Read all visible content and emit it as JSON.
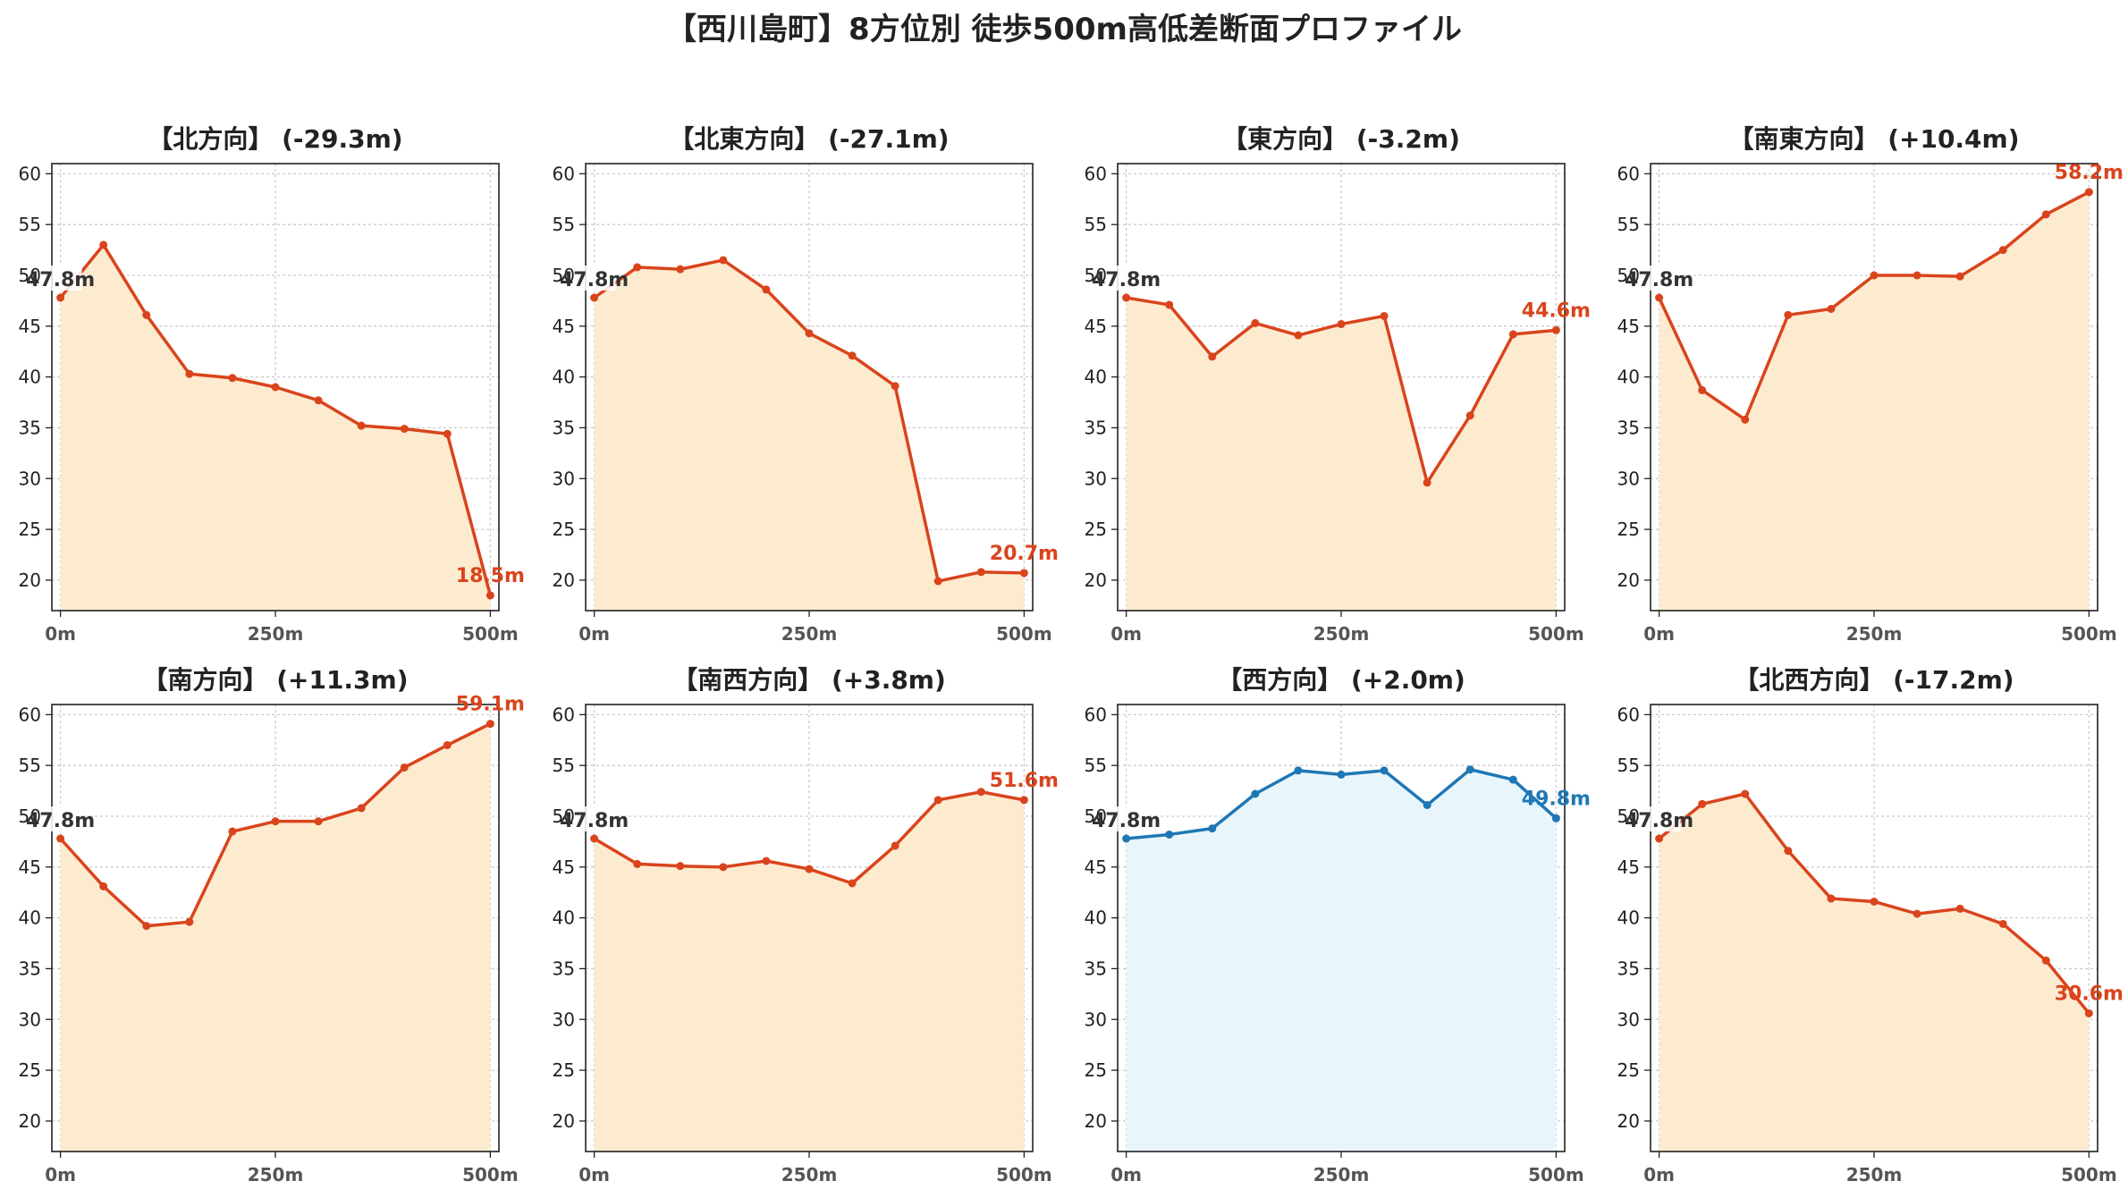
{
  "figure": {
    "title": "【西川島町】8方位別 徒歩500m高低差断面プロファイル",
    "colors": {
      "up_line": "#d9441c",
      "up_fill": "#fdebd0",
      "down_line": "#1f77b4",
      "down_fill": "#e8f6fc",
      "start_label": "#333333"
    }
  },
  "chart_data": [
    {
      "type": "line",
      "title": "【北方向】 (-29.3m)",
      "x": [
        0,
        50,
        100,
        150,
        200,
        250,
        300,
        350,
        400,
        450,
        500
      ],
      "values": [
        47.8,
        53.0,
        46.1,
        40.3,
        39.9,
        39.0,
        37.7,
        35.2,
        34.9,
        34.4,
        18.5
      ],
      "start_label": "47.8m",
      "end_label": "18.5m",
      "scheme": "up",
      "xticks": [
        "0m",
        "250m",
        "500m"
      ],
      "yticks": [
        "20",
        "25",
        "30",
        "35",
        "40",
        "45",
        "50",
        "55",
        "60"
      ],
      "ylim": [
        17,
        61
      ],
      "xlim": [
        -10,
        510
      ],
      "grid": true
    },
    {
      "type": "line",
      "title": "【北東方向】 (-27.1m)",
      "x": [
        0,
        50,
        100,
        150,
        200,
        250,
        300,
        350,
        400,
        450,
        500
      ],
      "values": [
        47.8,
        50.8,
        50.6,
        51.5,
        48.6,
        44.3,
        42.1,
        39.1,
        19.9,
        20.8,
        20.7
      ],
      "start_label": "47.8m",
      "end_label": "20.7m",
      "scheme": "up",
      "xticks": [
        "0m",
        "250m",
        "500m"
      ],
      "yticks": [
        "20",
        "25",
        "30",
        "35",
        "40",
        "45",
        "50",
        "55",
        "60"
      ],
      "ylim": [
        17,
        61
      ],
      "xlim": [
        -10,
        510
      ],
      "grid": true
    },
    {
      "type": "line",
      "title": "【東方向】 (-3.2m)",
      "x": [
        0,
        50,
        100,
        150,
        200,
        250,
        300,
        350,
        400,
        450,
        500
      ],
      "values": [
        47.8,
        47.1,
        42.0,
        45.3,
        44.1,
        45.2,
        46.0,
        29.6,
        36.2,
        44.2,
        44.6
      ],
      "start_label": "47.8m",
      "end_label": "44.6m",
      "scheme": "up",
      "xticks": [
        "0m",
        "250m",
        "500m"
      ],
      "yticks": [
        "20",
        "25",
        "30",
        "35",
        "40",
        "45",
        "50",
        "55",
        "60"
      ],
      "ylim": [
        17,
        61
      ],
      "xlim": [
        -10,
        510
      ],
      "grid": true
    },
    {
      "type": "line",
      "title": "【南東方向】 (+10.4m)",
      "x": [
        0,
        50,
        100,
        150,
        200,
        250,
        300,
        350,
        400,
        450,
        500
      ],
      "values": [
        47.8,
        38.7,
        35.8,
        46.1,
        46.7,
        50.0,
        50.0,
        49.9,
        52.5,
        56.0,
        58.2
      ],
      "start_label": "47.8m",
      "end_label": "58.2m",
      "scheme": "up",
      "xticks": [
        "0m",
        "250m",
        "500m"
      ],
      "yticks": [
        "20",
        "25",
        "30",
        "35",
        "40",
        "45",
        "50",
        "55",
        "60"
      ],
      "ylim": [
        17,
        61
      ],
      "xlim": [
        -10,
        510
      ],
      "grid": true
    },
    {
      "type": "line",
      "title": "【南方向】 (+11.3m)",
      "x": [
        0,
        50,
        100,
        150,
        200,
        250,
        300,
        350,
        400,
        450,
        500
      ],
      "values": [
        47.8,
        43.1,
        39.2,
        39.6,
        48.5,
        49.5,
        49.5,
        50.8,
        54.8,
        57.0,
        59.1
      ],
      "start_label": "47.8m",
      "end_label": "59.1m",
      "scheme": "up",
      "xticks": [
        "0m",
        "250m",
        "500m"
      ],
      "yticks": [
        "20",
        "25",
        "30",
        "35",
        "40",
        "45",
        "50",
        "55",
        "60"
      ],
      "ylim": [
        17,
        61
      ],
      "xlim": [
        -10,
        510
      ],
      "grid": true
    },
    {
      "type": "line",
      "title": "【南西方向】 (+3.8m)",
      "x": [
        0,
        50,
        100,
        150,
        200,
        250,
        300,
        350,
        400,
        450,
        500
      ],
      "values": [
        47.8,
        45.3,
        45.1,
        45.0,
        45.6,
        44.8,
        43.4,
        47.1,
        51.6,
        52.4,
        51.6
      ],
      "start_label": "47.8m",
      "end_label": "51.6m",
      "scheme": "up",
      "xticks": [
        "0m",
        "250m",
        "500m"
      ],
      "yticks": [
        "20",
        "25",
        "30",
        "35",
        "40",
        "45",
        "50",
        "55",
        "60"
      ],
      "ylim": [
        17,
        61
      ],
      "xlim": [
        -10,
        510
      ],
      "grid": true
    },
    {
      "type": "line",
      "title": "【西方向】 (+2.0m)",
      "x": [
        0,
        50,
        100,
        150,
        200,
        250,
        300,
        350,
        400,
        450,
        500
      ],
      "values": [
        47.8,
        48.2,
        48.8,
        52.2,
        54.5,
        54.1,
        54.5,
        51.1,
        54.6,
        53.6,
        49.8
      ],
      "start_label": "47.8m",
      "end_label": "49.8m",
      "scheme": "down",
      "xticks": [
        "0m",
        "250m",
        "500m"
      ],
      "yticks": [
        "20",
        "25",
        "30",
        "35",
        "40",
        "45",
        "50",
        "55",
        "60"
      ],
      "ylim": [
        17,
        61
      ],
      "xlim": [
        -10,
        510
      ],
      "grid": true
    },
    {
      "type": "line",
      "title": "【北西方向】 (-17.2m)",
      "x": [
        0,
        50,
        100,
        150,
        200,
        250,
        300,
        350,
        400,
        450,
        500
      ],
      "values": [
        47.8,
        51.2,
        52.2,
        46.6,
        41.9,
        41.6,
        40.4,
        40.9,
        39.4,
        35.8,
        30.6
      ],
      "start_label": "47.8m",
      "end_label": "30.6m",
      "scheme": "up",
      "xticks": [
        "0m",
        "250m",
        "500m"
      ],
      "yticks": [
        "20",
        "25",
        "30",
        "35",
        "40",
        "45",
        "50",
        "55",
        "60"
      ],
      "ylim": [
        17,
        61
      ],
      "xlim": [
        -10,
        510
      ],
      "grid": true
    }
  ]
}
